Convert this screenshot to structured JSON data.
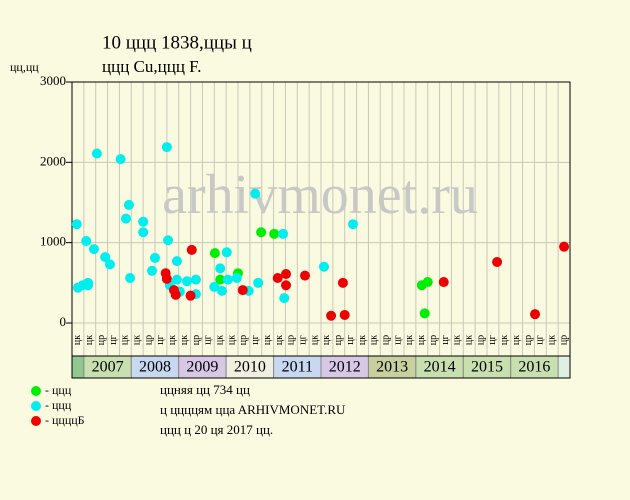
{
  "chart_data": {
    "type": "scatter",
    "title": "10 ццц 1838,ццы ц",
    "subtitle": "ццц Cu,ццц F.",
    "y_label": "цц,цц",
    "watermark": "arhivmonet.ru",
    "ylim": [
      0,
      3000
    ],
    "yticks": [
      0,
      1000,
      2000,
      3000
    ],
    "xlim": [
      0,
      42
    ],
    "grid": true,
    "quarters": [
      "цк",
      "цк",
      "цр",
      "цг",
      "цк",
      "цк",
      "цр",
      "цг",
      "цк",
      "цк",
      "цр",
      "цг",
      "цк",
      "цк",
      "цр",
      "цг",
      "цк",
      "цк",
      "цр",
      "цг",
      "цк",
      "цк",
      "цр",
      "цг",
      "цк",
      "цк",
      "цр",
      "цг",
      "цк",
      "цк",
      "цр",
      "цг",
      "цк",
      "цк",
      "цр",
      "цг",
      "цк",
      "цк",
      "цр",
      "цг",
      "цк",
      "цр"
    ],
    "years": [
      2007,
      2008,
      2009,
      2010,
      2011,
      2012,
      2013,
      2014,
      2015,
      2016
    ],
    "year_colors": [
      "#c8e0b0",
      "#c8d8f0",
      "#d8c8e8",
      "#f0f0e0",
      "#c8d8f0",
      "#d8c8e8",
      "#c8d0a0",
      "#c8e0b0",
      "#c8e0b0",
      "#c8e0b0"
    ],
    "series": [
      {
        "name": "- ццц",
        "color": "#00ee00",
        "x": [
          12.05,
          12.5,
          14.0,
          15.95,
          17.05,
          29.5,
          30.0,
          29.75
        ],
        "values": [
          870,
          540,
          620,
          1130,
          1110,
          470,
          510,
          120
        ]
      },
      {
        "name": "- ццц",
        "color": "#00eeee",
        "x": [
          0.4,
          0.5,
          0.9,
          1.2,
          1.35,
          1.35,
          1.85,
          2.1,
          2.8,
          3.2,
          4.1,
          4.55,
          4.8,
          4.9,
          6.0,
          6.0,
          6.75,
          7.0,
          8.0,
          8.1,
          8.25,
          8.85,
          8.85,
          9.1,
          9.7,
          10.45,
          10.45,
          12.0,
          12.5,
          12.65,
          13.05,
          13.15,
          13.9,
          14.9,
          15.45,
          15.7,
          17.8,
          17.9,
          21.25,
          23.7
        ],
        "values": [
          1230,
          440,
          470,
          1020,
          470,
          500,
          920,
          2110,
          820,
          730,
          2040,
          1300,
          1470,
          560,
          1260,
          1130,
          650,
          810,
          2190,
          1030,
          470,
          770,
          540,
          390,
          520,
          360,
          540,
          450,
          680,
          400,
          880,
          540,
          560,
          400,
          1610,
          500,
          1110,
          310,
          700,
          1230
        ]
      },
      {
        "name": "- ццццБ",
        "color": "#ee0000",
        "x": [
          7.9,
          8.0,
          8.6,
          8.75,
          10.0,
          10.1,
          14.4,
          17.35,
          18.05,
          18.05,
          19.65,
          21.85,
          22.85,
          23.0,
          31.35,
          35.85,
          39.05,
          41.5
        ],
        "values": [
          620,
          550,
          410,
          350,
          340,
          910,
          410,
          560,
          610,
          470,
          590,
          90,
          500,
          100,
          510,
          760,
          110,
          950
        ]
      }
    ],
    "notes": [
      "ццняя цц 734 цц",
      "ц ццццям ццa ARHIVMONET.RU",
      "ццц ц 20 ця 2017 цц."
    ]
  }
}
